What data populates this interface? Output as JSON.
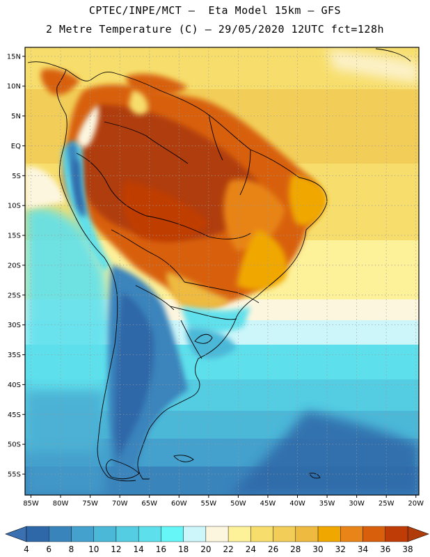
{
  "header": {
    "title_line1": "CPTEC/INPE/MCT –  Eta Model 15km – GFS",
    "title_line2": "2 Metre Temperature (C) – 29/05/2020 12UTC fct=128h"
  },
  "map": {
    "region": "South America",
    "variable": "2 Metre Temperature",
    "units": "C",
    "lon_range": [
      -86,
      -19.5
    ],
    "lat_range": [
      -58.5,
      16.5
    ],
    "lat_ticks": [
      {
        "value": 15,
        "label": "15N"
      },
      {
        "value": 10,
        "label": "10N"
      },
      {
        "value": 5,
        "label": "5N"
      },
      {
        "value": 0,
        "label": "EQ"
      },
      {
        "value": -5,
        "label": "5S"
      },
      {
        "value": -10,
        "label": "10S"
      },
      {
        "value": -15,
        "label": "15S"
      },
      {
        "value": -20,
        "label": "20S"
      },
      {
        "value": -25,
        "label": "25S"
      },
      {
        "value": -30,
        "label": "30S"
      },
      {
        "value": -35,
        "label": "35S"
      },
      {
        "value": -40,
        "label": "40S"
      },
      {
        "value": -45,
        "label": "45S"
      },
      {
        "value": -50,
        "label": "50S"
      },
      {
        "value": -55,
        "label": "55S"
      }
    ],
    "lon_ticks": [
      {
        "value": -85,
        "label": "85W"
      },
      {
        "value": -80,
        "label": "80W"
      },
      {
        "value": -75,
        "label": "75W"
      },
      {
        "value": -70,
        "label": "70W"
      },
      {
        "value": -65,
        "label": "65W"
      },
      {
        "value": -60,
        "label": "60W"
      },
      {
        "value": -55,
        "label": "55W"
      },
      {
        "value": -50,
        "label": "50W"
      },
      {
        "value": -45,
        "label": "45W"
      },
      {
        "value": -40,
        "label": "40W"
      },
      {
        "value": -35,
        "label": "35W"
      },
      {
        "value": -30,
        "label": "30W"
      },
      {
        "value": -25,
        "label": "25W"
      },
      {
        "value": -20,
        "label": "20W"
      }
    ]
  },
  "colorbar": {
    "below_color": "#3a6fb0",
    "above_color": "#b03c0a",
    "bins": [
      {
        "color": "#2e68a8"
      },
      {
        "color": "#3a84bc"
      },
      {
        "color": "#44a0cc"
      },
      {
        "color": "#4cb8d8"
      },
      {
        "color": "#54cce2"
      },
      {
        "color": "#5ee0ec"
      },
      {
        "color": "#66f6f8"
      },
      {
        "color": "#cdf6fa"
      },
      {
        "color": "#fdf6df"
      },
      {
        "color": "#fdf19a"
      },
      {
        "color": "#f7de6c"
      },
      {
        "color": "#f2ce58"
      },
      {
        "color": "#eeba40"
      },
      {
        "color": "#f0a800"
      },
      {
        "color": "#e88418"
      },
      {
        "color": "#d8600c"
      },
      {
        "color": "#c03c06"
      }
    ],
    "labels": [
      "4",
      "6",
      "8",
      "10",
      "12",
      "14",
      "16",
      "18",
      "20",
      "22",
      "24",
      "26",
      "28",
      "30",
      "32",
      "34",
      "36",
      "38"
    ]
  }
}
